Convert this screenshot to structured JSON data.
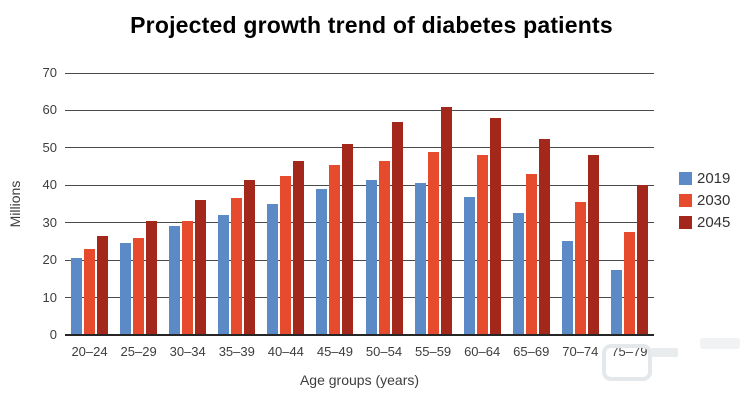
{
  "chart_data": {
    "type": "bar",
    "title": "Projected growth trend of diabetes patients",
    "ylabel": "Millions",
    "xlabel": "Age groups (years)",
    "categories": [
      "20–24",
      "25–29",
      "30–34",
      "35–39",
      "40–44",
      "45–49",
      "50–54",
      "55–59",
      "60–64",
      "65–69",
      "70–74",
      "75–79"
    ],
    "series": [
      {
        "name": "2019",
        "color": "#5b8ac6",
        "values": [
          20.5,
          24.5,
          29,
          32,
          35,
          39,
          41.5,
          40.5,
          37,
          32.5,
          25,
          17.5
        ]
      },
      {
        "name": "2030",
        "color": "#e64b2d",
        "values": [
          23,
          26,
          30.5,
          36.5,
          42.5,
          45.5,
          46.5,
          49,
          48,
          43,
          35.5,
          27.5
        ]
      },
      {
        "name": "2045",
        "color": "#a3281b",
        "values": [
          26.5,
          30.5,
          36,
          41.5,
          46.5,
          51,
          57,
          61,
          58,
          52.5,
          48,
          40
        ]
      }
    ],
    "ylim": [
      0,
      70
    ],
    "yticks": [
      0,
      10,
      20,
      30,
      40,
      50,
      60,
      70
    ],
    "grid": true,
    "legend_position": "right",
    "colors": {
      "background": "#ffffff",
      "title_text": "#000000",
      "axis_text": "#3d3d3d",
      "gridline": "#4a4a4a",
      "baseline": "#262626"
    }
  }
}
